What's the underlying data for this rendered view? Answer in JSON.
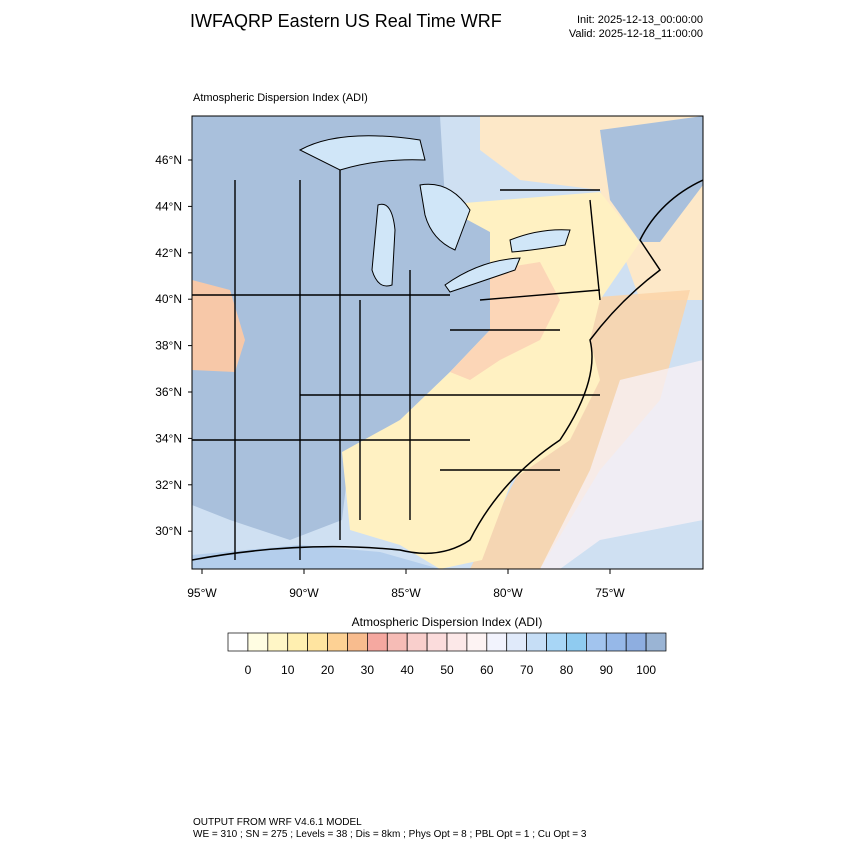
{
  "header": {
    "title": "IWFAQRP Eastern US Real Time WRF",
    "init": "Init: 2025-12-13_00:00:00",
    "valid": "Valid: 2025-12-18_11:00:00"
  },
  "map": {
    "label": "Atmospheric Dispersion Index   (ADI)",
    "lat_labels": [
      "46°N",
      "44°N",
      "42°N",
      "40°N",
      "38°N",
      "36°N",
      "34°N",
      "32°N",
      "30°N"
    ],
    "lon_labels": [
      "95°W",
      "90°W",
      "85°W",
      "80°W",
      "75°W"
    ]
  },
  "colorbar": {
    "title": "Atmospheric Dispersion Index  (ADI)",
    "colors": [
      "#ffffff",
      "#fffde2",
      "#fff6c6",
      "#ffefb0",
      "#ffe4a0",
      "#fdd194",
      "#f8bc8e",
      "#f5a8a0",
      "#f6bcb6",
      "#f9cfcc",
      "#fbdcdc",
      "#fce8e8",
      "#fdf3f3",
      "#f2f3fd",
      "#e0eafa",
      "#c6def6",
      "#a8d6f6",
      "#8fcbf0",
      "#a2c4ee",
      "#96b8e8",
      "#8eaee0",
      "#9ab4d4"
    ],
    "tick_labels": [
      "0",
      "10",
      "20",
      "30",
      "40",
      "50",
      "60",
      "70",
      "80",
      "90",
      "100"
    ]
  },
  "footer": {
    "line1": "OUTPUT FROM WRF V4.6.1 MODEL",
    "line2": "WE = 310 ; SN = 275 ; Levels = 38 ; Dis = 8km ; Phys Opt = 8 ; PBL Opt = 1 ; Cu Opt = 3"
  }
}
